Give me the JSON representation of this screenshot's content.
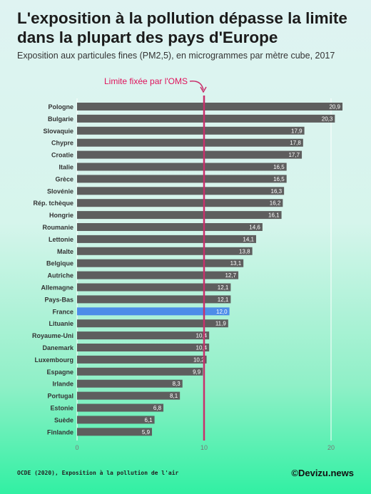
{
  "header": {
    "title": "L'exposition à la pollution dépasse la limite dans la plupart des pays d'Europe",
    "subtitle": "Exposition aux particules fines (PM2,5), en microgrammes par mètre cube, 2017"
  },
  "footer": {
    "source": "OCDE (2020), Exposition à la pollution de l'air",
    "brand": "©Devizu.news"
  },
  "colors": {
    "bar": "#5e5e5e",
    "highlight": "#4d8de8",
    "limit_line": "#c8306c",
    "annotation": "#e0145c",
    "label_text": "#333333"
  },
  "chart_data": {
    "type": "bar",
    "orientation": "horizontal",
    "categories": [
      "Pologne",
      "Bulgarie",
      "Slovaquie",
      "Chypre",
      "Croatie",
      "Italie",
      "Grèce",
      "Slovénie",
      "Rép. tchèque",
      "Hongrie",
      "Roumanie",
      "Lettonie",
      "Malte",
      "Belgique",
      "Autriche",
      "Allemagne",
      "Pays-Bas",
      "France",
      "Lituanie",
      "Royaume-Uni",
      "Danemark",
      "Luxembourg",
      "Espagne",
      "Irlande",
      "Portugal",
      "Estonie",
      "Suède",
      "Finlande"
    ],
    "values": [
      20.9,
      20.3,
      17.9,
      17.8,
      17.7,
      16.5,
      16.5,
      16.3,
      16.2,
      16.1,
      14.6,
      14.1,
      13.8,
      13.1,
      12.7,
      12.1,
      12.1,
      12.0,
      11.9,
      10.4,
      10.4,
      10.2,
      9.9,
      8.3,
      8.1,
      6.8,
      6.1,
      5.9
    ],
    "value_labels": [
      "20,9",
      "20,3",
      "17,9",
      "17,8",
      "17,7",
      "16,5",
      "16,5",
      "16,3",
      "16,2",
      "16,1",
      "14,6",
      "14,1",
      "13,8",
      "13,1",
      "12,7",
      "12,1",
      "12,1",
      "12,0",
      "11,9",
      "10,4",
      "10,4",
      "10,2",
      "9,9",
      "8,3",
      "8,1",
      "6,8",
      "6,1",
      "5,9"
    ],
    "highlight": "France",
    "xlim": [
      0,
      21
    ],
    "xticks": [
      0,
      10,
      20
    ],
    "grid": true,
    "reference_line": {
      "value": 10,
      "label": "Limite fixée par l'OMS"
    }
  }
}
